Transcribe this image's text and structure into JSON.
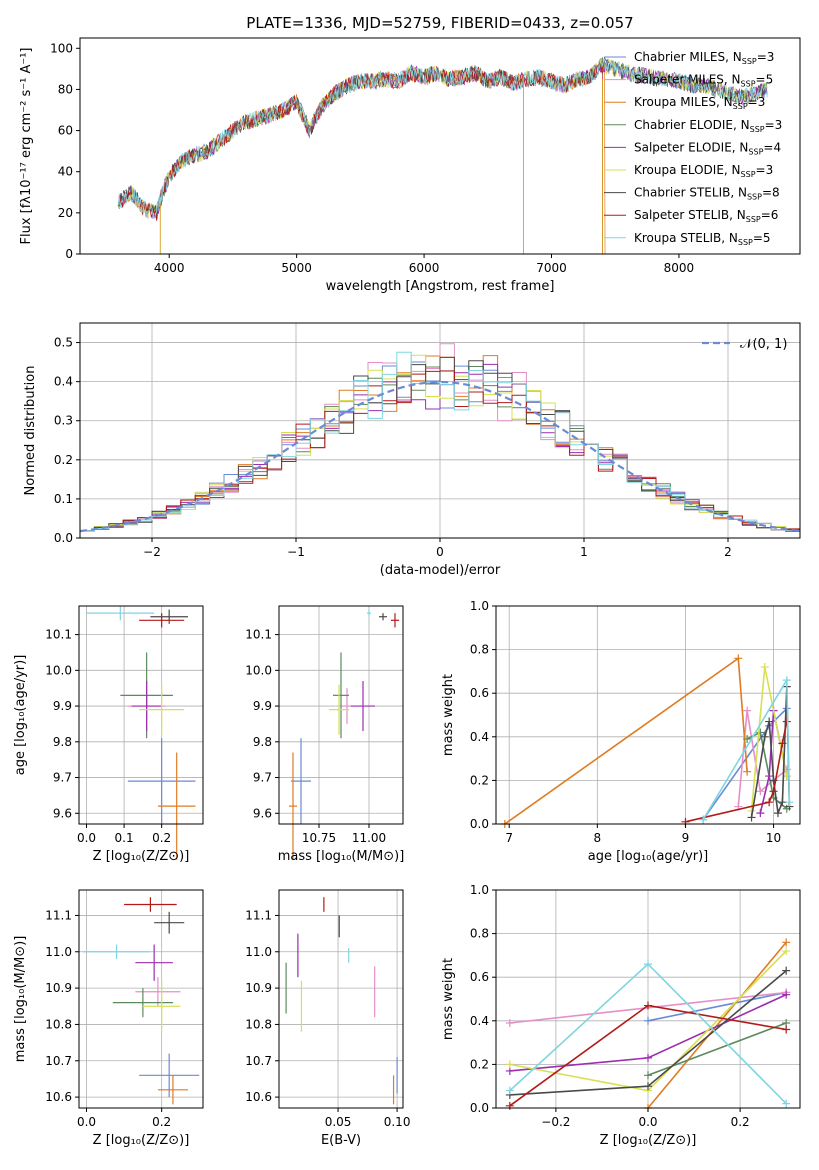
{
  "title": "PLATE=1336, MJD=52759, FIBERID=0433, z=0.057",
  "models": [
    {
      "name": "Chabrier MILES",
      "nssp": "3",
      "color": "#6b8ad6"
    },
    {
      "name": "Salpeter MILES",
      "nssp": "5",
      "color": "#e58fc9"
    },
    {
      "name": "Kroupa MILES",
      "nssp": "3",
      "color": "#e07b22"
    },
    {
      "name": "Chabrier ELODIE",
      "nssp": "3",
      "color": "#5c8a5c"
    },
    {
      "name": "Salpeter ELODIE",
      "nssp": "4",
      "color": "#9b2fae"
    },
    {
      "name": "Kroupa ELODIE",
      "nssp": "3",
      "color": "#d6e050"
    },
    {
      "name": "Chabrier STELIB",
      "nssp": "8",
      "color": "#4a4a4a"
    },
    {
      "name": "Salpeter STELIB",
      "nssp": "6",
      "color": "#b21a1a"
    },
    {
      "name": "Kroupa STELIB",
      "nssp": "5",
      "color": "#7fd5e0"
    }
  ],
  "chart_data": [
    {
      "id": "spectrum",
      "type": "line",
      "xlabel": "wavelength [Angstrom, rest frame]",
      "ylabel": "Flux [fλ10⁻¹⁷ erg cm⁻² s⁻¹ A⁻¹]",
      "xlim": [
        3300,
        8950
      ],
      "ylim": [
        0,
        105
      ],
      "xticks": [
        4000,
        5000,
        6000,
        7000,
        8000
      ],
      "yticks": [
        0,
        20,
        40,
        60,
        80,
        100
      ],
      "x": [
        3600,
        3700,
        3800,
        3900,
        3950,
        4000,
        4100,
        4200,
        4300,
        4400,
        4500,
        4600,
        4700,
        4800,
        4900,
        5000,
        5100,
        5200,
        5300,
        5400,
        5500,
        5600,
        5700,
        5800,
        5900,
        6000,
        6100,
        6200,
        6300,
        6400,
        6500,
        6600,
        6700,
        6800,
        6900,
        7000,
        7100,
        7200,
        7300,
        7400,
        7500,
        7600,
        7700,
        7800,
        7900,
        8000,
        8100,
        8200,
        8300,
        8400,
        8500,
        8600,
        8700
      ],
      "y": [
        25,
        30,
        22,
        20,
        30,
        38,
        45,
        48,
        50,
        55,
        60,
        64,
        66,
        68,
        70,
        74,
        60,
        72,
        78,
        82,
        84,
        84,
        85,
        84,
        88,
        86,
        88,
        85,
        86,
        88,
        84,
        86,
        83,
        85,
        86,
        84,
        82,
        85,
        86,
        92,
        90,
        88,
        87,
        86,
        85,
        84,
        82,
        82,
        80,
        78,
        76,
        78,
        80
      ],
      "drops": [
        3930,
        6780,
        7400
      ],
      "grid": false,
      "legend": "right"
    },
    {
      "id": "residuals",
      "type": "histogram",
      "xlabel": "(data-model)/error",
      "ylabel": "Normed distribution",
      "xlim": [
        -2.5,
        2.5
      ],
      "ylim": [
        0,
        0.55
      ],
      "xticks": [
        -2,
        -1,
        0,
        1,
        2
      ],
      "yticks": [
        0,
        0.1,
        0.2,
        0.3,
        0.4,
        0.5
      ],
      "bin_width": 0.1,
      "curve_label": "𝒩(0, 1)",
      "grid": true,
      "legend": "top-right"
    },
    {
      "id": "age_vs_Z",
      "type": "scatter",
      "xlabel": "Z [log₁₀(Z/Z⊙)]",
      "ylabel": "age  [log₁₀(age/yr)]",
      "xlim": [
        -0.02,
        0.31
      ],
      "ylim": [
        9.57,
        10.18
      ],
      "xticks": [
        0,
        0.1,
        0.2
      ],
      "yticks": [
        9.6,
        9.7,
        9.8,
        9.9,
        10.0,
        10.1
      ],
      "points": [
        {
          "x": 0.2,
          "y": 9.69,
          "xerr": 0.09,
          "yerr": 0.12
        },
        {
          "x": 0.16,
          "y": 9.9,
          "xerr": 0.05,
          "yerr": 0.03
        },
        {
          "x": 0.24,
          "y": 9.62,
          "xerr": 0.05,
          "yerr": 0.15
        },
        {
          "x": 0.16,
          "y": 9.93,
          "xerr": 0.07,
          "yerr": 0.12
        },
        {
          "x": 0.16,
          "y": 9.9,
          "xerr": 0.04,
          "yerr": 0.07
        },
        {
          "x": 0.2,
          "y": 9.89,
          "xerr": 0.06,
          "yerr": 0.07
        },
        {
          "x": 0.22,
          "y": 10.15,
          "xerr": 0.05,
          "yerr": 0.02
        },
        {
          "x": 0.2,
          "y": 10.14,
          "xerr": 0.06,
          "yerr": 0.02
        },
        {
          "x": 0.09,
          "y": 10.16,
          "xerr": 0.09,
          "yerr": 0.02
        }
      ]
    },
    {
      "id": "age_vs_mass",
      "type": "scatter",
      "xlabel": "mass [log₁₀(M/M⊙)]",
      "ylabel": "",
      "xlim": [
        10.55,
        11.17
      ],
      "ylim": [
        9.57,
        10.18
      ],
      "xticks": [
        10.75,
        11.0
      ],
      "yticks": [
        9.6,
        9.7,
        9.8,
        9.9,
        10.0,
        10.1
      ],
      "points": [
        {
          "x": 10.66,
          "y": 9.69,
          "xerr": 0.05,
          "yerr": 0.12
        },
        {
          "x": 10.89,
          "y": 9.9,
          "xerr": 0.03,
          "yerr": 0.05
        },
        {
          "x": 10.62,
          "y": 9.62,
          "xerr": 0.02,
          "yerr": 0.15
        },
        {
          "x": 10.86,
          "y": 9.93,
          "xerr": 0.04,
          "yerr": 0.12
        },
        {
          "x": 10.97,
          "y": 9.9,
          "xerr": 0.06,
          "yerr": 0.07
        },
        {
          "x": 10.85,
          "y": 9.89,
          "xerr": 0.05,
          "yerr": 0.07
        },
        {
          "x": 11.07,
          "y": 10.15,
          "xerr": 0.02,
          "yerr": 0.01
        },
        {
          "x": 11.13,
          "y": 10.14,
          "xerr": 0.02,
          "yerr": 0.02
        },
        {
          "x": 11.0,
          "y": 10.16,
          "xerr": 0.01,
          "yerr": 0.01
        }
      ]
    },
    {
      "id": "weight_vs_age",
      "type": "line",
      "xlabel": "age  [log₁₀(age/yr)]",
      "ylabel": "mass weight",
      "xlim": [
        6.85,
        10.3
      ],
      "ylim": [
        0,
        1.0
      ],
      "xticks": [
        7,
        8,
        9,
        10
      ],
      "yticks": [
        0.0,
        0.2,
        0.4,
        0.6,
        0.8,
        1.0
      ],
      "series": [
        {
          "x": [
            9.2,
            9.95,
            10.15
          ],
          "y": [
            0.02,
            0.45,
            0.53
          ]
        },
        {
          "x": [
            9.6,
            9.7,
            9.85,
            10.15
          ],
          "y": [
            0.08,
            0.52,
            0.15,
            0.25
          ]
        },
        {
          "x": [
            6.95,
            9.6,
            9.7
          ],
          "y": [
            0.0,
            0.76,
            0.24
          ]
        },
        {
          "x": [
            9.7,
            9.85,
            10.0,
            10.15
          ],
          "y": [
            0.39,
            0.42,
            0.12,
            0.07
          ]
        },
        {
          "x": [
            9.85,
            9.95,
            10.0,
            10.15
          ],
          "y": [
            0.05,
            0.22,
            0.52,
            0.22
          ]
        },
        {
          "x": [
            9.75,
            9.9,
            10.15
          ],
          "y": [
            0.06,
            0.72,
            0.22
          ]
        },
        {
          "x": [
            9.75,
            9.9,
            9.95,
            10.0,
            10.05,
            10.1,
            10.15,
            10.18
          ],
          "y": [
            0.03,
            0.4,
            0.47,
            0.2,
            0.05,
            0.1,
            0.63,
            0.08
          ]
        },
        {
          "x": [
            9.0,
            9.95,
            10.0,
            10.1,
            10.15
          ],
          "y": [
            0.01,
            0.1,
            0.15,
            0.37,
            0.47
          ]
        },
        {
          "x": [
            9.2,
            10.15,
            10.18
          ],
          "y": [
            0.02,
            0.66,
            0.1
          ]
        }
      ]
    },
    {
      "id": "mass_vs_Z",
      "type": "scatter",
      "xlabel": "Z [log₁₀(Z/Z⊙)]",
      "ylabel": "mass [log₁₀(M/M⊙)]",
      "xlim": [
        -0.02,
        0.31
      ],
      "ylim": [
        10.57,
        11.17
      ],
      "xticks": [
        0,
        0.2
      ],
      "yticks": [
        10.6,
        10.7,
        10.8,
        10.9,
        11.0,
        11.1
      ],
      "points": [
        {
          "x": 0.22,
          "y": 10.66,
          "xerr": 0.08,
          "yerr": 0.06
        },
        {
          "x": 0.19,
          "y": 10.89,
          "xerr": 0.06,
          "yerr": 0.04
        },
        {
          "x": 0.23,
          "y": 10.62,
          "xerr": 0.04,
          "yerr": 0.04
        },
        {
          "x": 0.15,
          "y": 10.86,
          "xerr": 0.08,
          "yerr": 0.04
        },
        {
          "x": 0.18,
          "y": 10.97,
          "xerr": 0.05,
          "yerr": 0.05
        },
        {
          "x": 0.2,
          "y": 10.85,
          "xerr": 0.05,
          "yerr": 0.07
        },
        {
          "x": 0.22,
          "y": 11.08,
          "xerr": 0.04,
          "yerr": 0.03
        },
        {
          "x": 0.17,
          "y": 11.13,
          "xerr": 0.07,
          "yerr": 0.02
        },
        {
          "x": 0.08,
          "y": 11.0,
          "xerr": 0.09,
          "yerr": 0.02
        }
      ]
    },
    {
      "id": "mass_vs_ebv",
      "type": "scatter",
      "xlabel": "E(B-V)",
      "ylabel": "",
      "xlim": [
        0.0,
        0.105
      ],
      "ylim": [
        10.57,
        11.17
      ],
      "xticks": [
        0.05,
        0.1
      ],
      "yticks": [
        10.6,
        10.7,
        10.8,
        10.9,
        11.0,
        11.1
      ],
      "points": [
        {
          "x": 0.1,
          "y": 10.66,
          "xerr": 0.0,
          "yerr": 0.05
        },
        {
          "x": 0.081,
          "y": 10.89,
          "xerr": 0.0,
          "yerr": 0.07
        },
        {
          "x": 0.097,
          "y": 10.62,
          "xerr": 0.0,
          "yerr": 0.04
        },
        {
          "x": 0.006,
          "y": 10.9,
          "xerr": 0.0,
          "yerr": 0.07
        },
        {
          "x": 0.016,
          "y": 10.99,
          "xerr": 0.0,
          "yerr": 0.06
        },
        {
          "x": 0.019,
          "y": 10.85,
          "xerr": 0.0,
          "yerr": 0.07
        },
        {
          "x": 0.051,
          "y": 11.07,
          "xerr": 0.0,
          "yerr": 0.03
        },
        {
          "x": 0.038,
          "y": 11.13,
          "xerr": 0.0,
          "yerr": 0.02
        },
        {
          "x": 0.059,
          "y": 10.99,
          "xerr": 0.0,
          "yerr": 0.02
        }
      ]
    },
    {
      "id": "weight_vs_Z",
      "type": "line",
      "xlabel": "Z [log₁₀(Z/Z⊙)]",
      "ylabel": "mass weight",
      "xlim": [
        -0.33,
        0.33
      ],
      "ylim": [
        0,
        1.0
      ],
      "xticks": [
        -0.2,
        0.0,
        0.2
      ],
      "yticks": [
        0.0,
        0.2,
        0.4,
        0.6,
        0.8,
        1.0
      ],
      "series": [
        {
          "x": [
            0.0,
            0.3
          ],
          "y": [
            0.4,
            0.53
          ]
        },
        {
          "x": [
            -0.3,
            0.3
          ],
          "y": [
            0.39,
            0.53
          ]
        },
        {
          "x": [
            0.0,
            0.3
          ],
          "y": [
            0.0,
            0.76
          ]
        },
        {
          "x": [
            0.0,
            0.3
          ],
          "y": [
            0.15,
            0.39
          ]
        },
        {
          "x": [
            -0.3,
            0.0,
            0.3
          ],
          "y": [
            0.17,
            0.23,
            0.52
          ]
        },
        {
          "x": [
            -0.3,
            0.0,
            0.3
          ],
          "y": [
            0.2,
            0.08,
            0.72
          ]
        },
        {
          "x": [
            -0.3,
            0.0,
            0.3
          ],
          "y": [
            0.06,
            0.1,
            0.63
          ]
        },
        {
          "x": [
            -0.3,
            0.0,
            0.3
          ],
          "y": [
            0.01,
            0.47,
            0.36
          ]
        },
        {
          "x": [
            -0.3,
            0.0,
            0.3
          ],
          "y": [
            0.08,
            0.66,
            0.02
          ]
        }
      ]
    }
  ]
}
